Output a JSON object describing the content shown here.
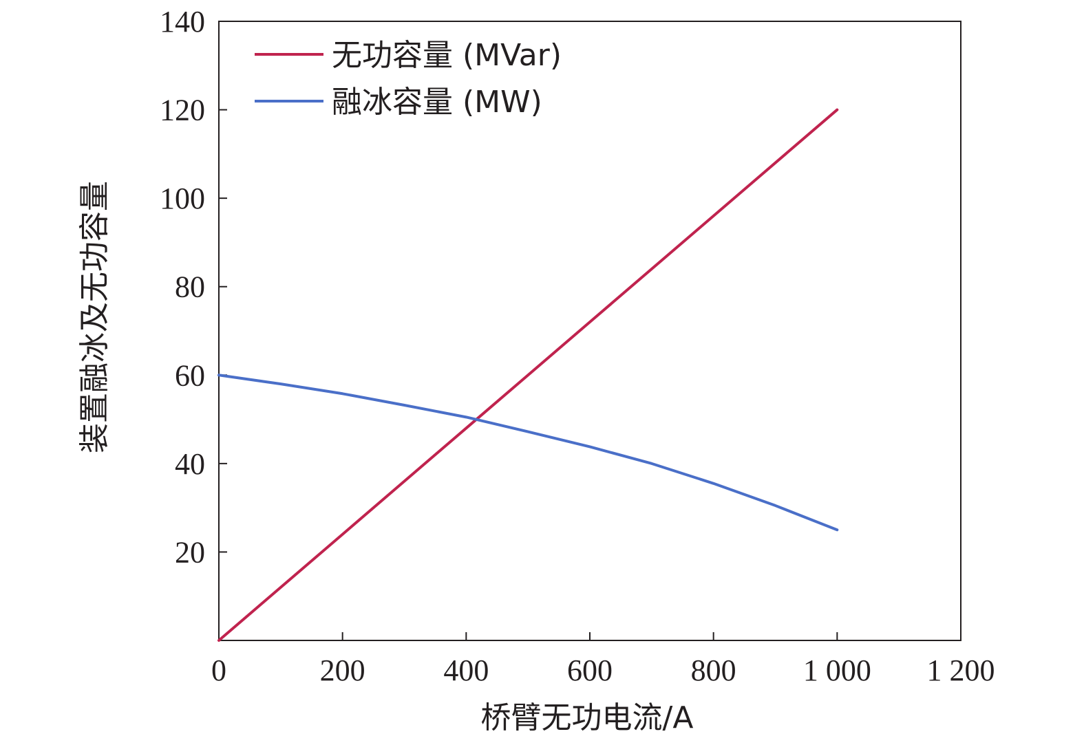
{
  "chart_data": {
    "type": "line",
    "title": "",
    "xlabel": "桥臂无功电流/A",
    "ylabel": "装置融冰及无功容量",
    "xlim": [
      0,
      1200
    ],
    "ylim": [
      0,
      140
    ],
    "x_ticks": [
      "0",
      "200",
      "400",
      "600",
      "800",
      "1 000",
      "1 200"
    ],
    "x_tick_values": [
      0,
      200,
      400,
      600,
      800,
      1000,
      1200
    ],
    "y_ticks": [
      "20",
      "40",
      "60",
      "80",
      "100",
      "120",
      "140"
    ],
    "y_tick_values": [
      20,
      40,
      60,
      80,
      100,
      120,
      140
    ],
    "grid": false,
    "legend_position": "top-left",
    "series": [
      {
        "name": "无功容量 (MVar)",
        "color": "#c0234e",
        "x": [
          0,
          200,
          400,
          600,
          800,
          1000
        ],
        "y": [
          0,
          24,
          48,
          72,
          96,
          120
        ]
      },
      {
        "name": "融冰容量 (MW)",
        "color": "#4a6fc8",
        "x": [
          0,
          100,
          200,
          300,
          400,
          500,
          600,
          700,
          800,
          900,
          1000
        ],
        "y": [
          60,
          58,
          55.8,
          53.2,
          50.5,
          47.2,
          43.8,
          40,
          35.5,
          30.5,
          25
        ]
      }
    ]
  }
}
